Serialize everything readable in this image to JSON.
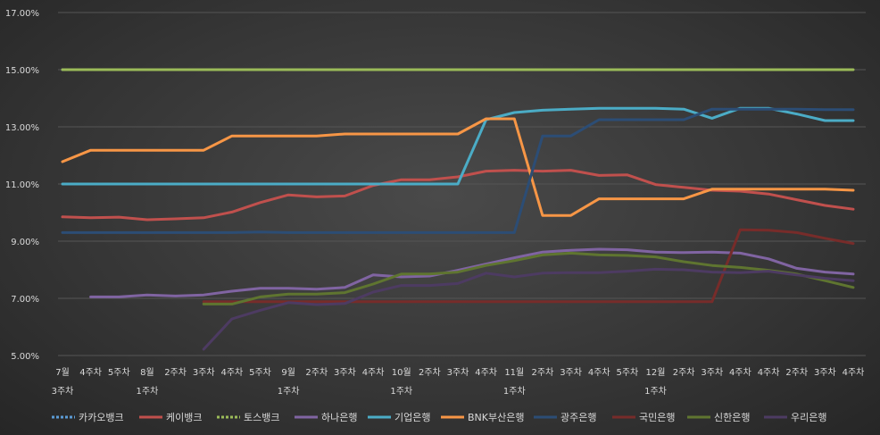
{
  "chart_data": {
    "type": "line",
    "title": "",
    "xlabel": "",
    "ylabel": "",
    "ylim": [
      5.0,
      17.0
    ],
    "yticks": [
      "5.00%",
      "7.00%",
      "9.00%",
      "11.00%",
      "13.00%",
      "15.00%",
      "17.00%"
    ],
    "grid": true,
    "legend_position": "bottom",
    "categories": [
      [
        "7월",
        "3주차"
      ],
      [
        "4주차"
      ],
      [
        "5주차"
      ],
      [
        "8월",
        "1주차"
      ],
      [
        "2주차"
      ],
      [
        "3주차"
      ],
      [
        "4주차"
      ],
      [
        "5주차"
      ],
      [
        "9월",
        "1주차"
      ],
      [
        "2주차"
      ],
      [
        "3주차"
      ],
      [
        "4주차"
      ],
      [
        "10월",
        "1주차"
      ],
      [
        "2주차"
      ],
      [
        "3주차"
      ],
      [
        "4주차"
      ],
      [
        "11월",
        "1주차"
      ],
      [
        "2주차"
      ],
      [
        "3주차"
      ],
      [
        "4주차"
      ],
      [
        "5주차"
      ],
      [
        "12월",
        "1주차"
      ],
      [
        "2주차"
      ],
      [
        "3주차"
      ],
      [
        "4주차"
      ],
      [
        "4주차"
      ],
      [
        "2주차"
      ],
      [
        "3주차"
      ],
      [
        "4주차"
      ]
    ],
    "series": [
      {
        "name": "카카오뱅크",
        "color": "#5b9bd5",
        "dashed": true,
        "values": [
          15.0,
          15.0,
          null,
          null,
          null,
          null,
          null,
          null,
          null,
          null,
          null,
          null,
          null,
          null,
          null,
          null,
          null,
          null,
          null,
          null,
          null,
          null,
          null,
          null,
          null,
          null,
          null,
          null,
          null
        ]
      },
      {
        "name": "케이뱅크",
        "color": "#c0504d",
        "values": [
          9.85,
          9.82,
          9.84,
          9.75,
          9.78,
          9.82,
          10.02,
          10.35,
          10.62,
          10.55,
          10.58,
          10.95,
          11.15,
          11.15,
          11.25,
          11.45,
          11.48,
          11.45,
          11.48,
          11.3,
          11.32,
          10.98,
          10.88,
          10.78,
          10.75,
          10.65,
          10.45,
          10.25,
          10.12
        ]
      },
      {
        "name": "토스뱅크",
        "color": "#9bbb59",
        "dashed": true,
        "values": [
          15.0,
          15.0,
          15.0,
          15.0,
          15.0,
          15.0,
          15.0,
          15.0,
          15.0,
          15.0,
          15.0,
          15.0,
          15.0,
          15.0,
          15.0,
          15.0,
          15.0,
          15.0,
          15.0,
          15.0,
          15.0,
          15.0,
          15.0,
          15.0,
          15.0,
          15.0,
          15.0,
          15.0,
          15.0
        ]
      },
      {
        "name": "하나은행",
        "color": "#8064a2",
        "values": [
          null,
          7.05,
          7.05,
          7.12,
          7.08,
          7.12,
          7.25,
          7.35,
          7.35,
          7.32,
          7.38,
          7.82,
          7.75,
          7.78,
          7.98,
          8.2,
          8.42,
          8.62,
          8.68,
          8.72,
          8.7,
          8.62,
          8.6,
          8.62,
          8.58,
          8.38,
          8.05,
          7.92,
          7.85
        ]
      },
      {
        "name": "기업은행",
        "color": "#4bacc6",
        "values": [
          11.0,
          11.0,
          11.0,
          11.0,
          11.0,
          11.0,
          11.0,
          11.0,
          11.0,
          11.0,
          11.0,
          11.0,
          11.0,
          11.0,
          11.0,
          13.25,
          13.5,
          13.58,
          13.62,
          13.65,
          13.65,
          13.65,
          13.62,
          13.3,
          13.65,
          13.65,
          13.45,
          13.22,
          13.22
        ]
      },
      {
        "name": "BNK부산은행",
        "color": "#f79646",
        "values": [
          11.78,
          12.18,
          12.18,
          12.18,
          12.18,
          12.18,
          12.68,
          12.68,
          12.68,
          12.68,
          12.75,
          12.75,
          12.75,
          12.75,
          12.75,
          13.28,
          13.28,
          9.9,
          9.9,
          10.48,
          10.48,
          10.48,
          10.48,
          10.82,
          10.82,
          10.82,
          10.82,
          10.82,
          10.78
        ]
      },
      {
        "name": "광주은행",
        "color": "#2c4d75",
        "values": [
          9.3,
          9.3,
          9.3,
          9.3,
          9.3,
          9.3,
          9.3,
          9.32,
          9.3,
          9.3,
          9.3,
          9.3,
          9.3,
          9.3,
          9.3,
          9.3,
          9.3,
          12.68,
          12.68,
          13.25,
          13.25,
          13.25,
          13.25,
          13.62,
          13.62,
          13.62,
          13.62,
          13.6,
          13.6
        ]
      },
      {
        "name": "국민은행",
        "color": "#772c2a",
        "values": [
          null,
          null,
          null,
          null,
          null,
          6.88,
          6.88,
          6.88,
          6.88,
          6.88,
          6.88,
          6.88,
          6.88,
          6.88,
          6.88,
          6.88,
          6.88,
          6.88,
          6.88,
          6.88,
          6.88,
          6.88,
          6.88,
          6.88,
          9.4,
          9.38,
          9.3,
          9.1,
          8.92
        ]
      },
      {
        "name": "신한은행",
        "color": "#5f7530",
        "values": [
          null,
          null,
          null,
          null,
          null,
          6.8,
          6.8,
          7.05,
          7.15,
          7.15,
          7.2,
          7.5,
          7.85,
          7.85,
          7.92,
          8.15,
          8.32,
          8.52,
          8.58,
          8.52,
          8.5,
          8.45,
          8.28,
          8.15,
          8.08,
          7.98,
          7.85,
          7.62,
          7.38
        ]
      },
      {
        "name": "우리은행",
        "color": "#4d3b62",
        "values": [
          null,
          null,
          null,
          null,
          null,
          5.22,
          6.28,
          6.58,
          6.85,
          6.78,
          6.82,
          7.22,
          7.45,
          7.45,
          7.52,
          7.88,
          7.75,
          7.88,
          7.9,
          7.9,
          7.95,
          8.02,
          8.0,
          7.92,
          7.9,
          7.95,
          7.82,
          7.7,
          7.62
        ]
      }
    ]
  }
}
